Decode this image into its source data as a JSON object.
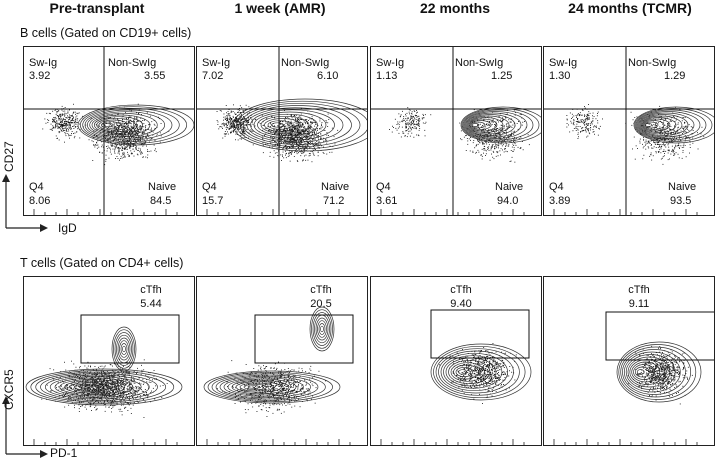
{
  "columns": [
    "Pre-transplant",
    "1 week (AMR)",
    "22 months",
    "24 months (TCMR)"
  ],
  "b_cells": {
    "title": "B cells (Gated on CD19+ cells)",
    "y_axis": "CD27",
    "x_axis": "IgD",
    "quadrant_labels": {
      "ul": "Sw-Ig",
      "ur": "Non-SwIg",
      "ll": "Q4",
      "lr": "Naive"
    },
    "panels": [
      {
        "ul": "3.92",
        "ur": "3.55",
        "ll": "8.06",
        "lr": "84.5"
      },
      {
        "ul": "7.02",
        "ur": "6.10",
        "ll": "15.7",
        "lr": "71.2"
      },
      {
        "ul": "1.13",
        "ur": "1.25",
        "ll": "3.61",
        "lr": "94.0"
      },
      {
        "ul": "1.30",
        "ur": "1.29",
        "ll": "3.89",
        "lr": "93.5"
      }
    ]
  },
  "t_cells": {
    "title": "T cells (Gated on CD4+ cells)",
    "y_axis": "CXCR5",
    "x_axis": "PD-1",
    "gate_label": "cTfh",
    "panels": [
      {
        "value": "5.44"
      },
      {
        "value": "20.5"
      },
      {
        "value": "9.40"
      },
      {
        "value": "9.11"
      }
    ]
  }
}
